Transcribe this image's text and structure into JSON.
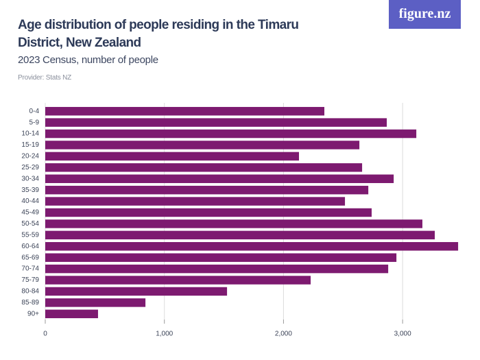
{
  "chart_data": {
    "type": "hbar",
    "title": "Age distribution of people residing in the Timaru District, New Zealand",
    "subtitle": "2023 Census, number of people",
    "provider": "Provider: Stats NZ",
    "logo": "figure.nz",
    "categories": [
      "0-4",
      "5-9",
      "10-14",
      "15-19",
      "20-24",
      "25-29",
      "30-34",
      "35-39",
      "40-44",
      "45-49",
      "50-54",
      "55-59",
      "60-64",
      "65-69",
      "70-74",
      "75-79",
      "80-84",
      "85-89",
      "90+"
    ],
    "values": [
      2343,
      2867,
      3115,
      2637,
      2130,
      2660,
      2925,
      2712,
      2516,
      2740,
      3166,
      3270,
      3466,
      2948,
      2879,
      2228,
      1526,
      841,
      443
    ],
    "color": "#7d1a70",
    "xlim": [
      0,
      3500
    ],
    "xticks": [
      0,
      {
        "value": 1000,
        "label": "1,000"
      },
      {
        "value": 2000,
        "label": "2,000"
      },
      {
        "value": 3000,
        "label": "3,000"
      }
    ],
    "grid": true
  }
}
